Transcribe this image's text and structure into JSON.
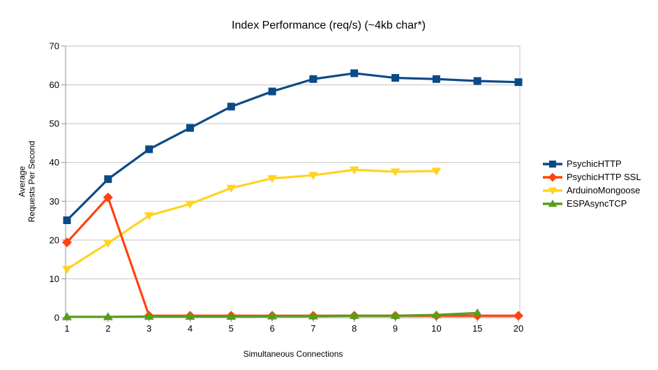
{
  "chart_data": {
    "type": "line",
    "title": "Index Performance (req/s) (~4kb char*)",
    "xlabel": "Simultaneous Connections",
    "ylabel": "Average\nRequests Per Second",
    "categories": [
      "1",
      "2",
      "3",
      "4",
      "5",
      "6",
      "7",
      "8",
      "9",
      "10",
      "15",
      "20"
    ],
    "ylim": [
      0,
      70
    ],
    "yticks": [
      0,
      10,
      20,
      30,
      40,
      50,
      60,
      70
    ],
    "grid": true,
    "legend_position": "right",
    "series": [
      {
        "name": "PsychicHTTP",
        "color": "#0B4A88",
        "marker": "square",
        "values": [
          25.1,
          35.7,
          43.4,
          48.9,
          54.4,
          58.3,
          61.5,
          63.0,
          61.8,
          61.5,
          61.0,
          60.7
        ]
      },
      {
        "name": "PsychicHTTP SSL",
        "color": "#FF420E",
        "marker": "diamond",
        "values": [
          19.4,
          31.0,
          0.5,
          0.5,
          0.5,
          0.5,
          0.5,
          0.5,
          0.5,
          0.5,
          0.5,
          0.5
        ]
      },
      {
        "name": "ArduinoMongoose",
        "color": "#FFD320",
        "marker": "triangle-down",
        "values": [
          12.5,
          19.2,
          26.3,
          29.3,
          33.4,
          35.9,
          36.7,
          38.1,
          37.6,
          37.8,
          null,
          null
        ]
      },
      {
        "name": "ESPAsyncTCP",
        "color": "#579D1C",
        "marker": "triangle-up",
        "values": [
          0.2,
          0.2,
          0.3,
          0.3,
          0.3,
          0.4,
          0.4,
          0.5,
          0.5,
          0.7,
          1.2,
          null
        ]
      }
    ]
  },
  "colors": {
    "gridline": "#C3C3C3",
    "axis": "#8F8F8F",
    "background": "#FFFFFF",
    "text": "#000000"
  }
}
